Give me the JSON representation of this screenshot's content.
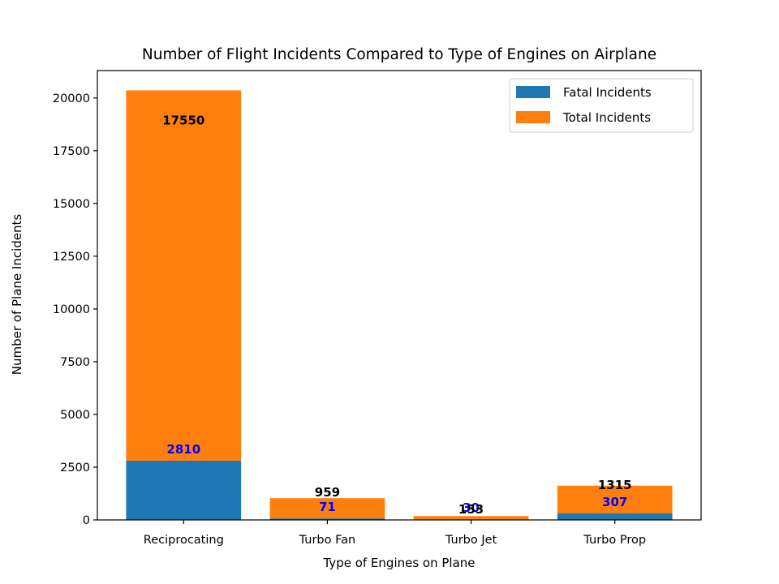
{
  "chart_data": {
    "type": "bar",
    "stacked": true,
    "title": "Number of Flight Incidents Compared to Type of Engines on Airplane",
    "xlabel": "Type of Engines on Plane",
    "ylabel": "Number of Plane Incidents",
    "categories": [
      "Reciprocating",
      "Turbo Fan",
      "Turbo Jet",
      "Turbo Prop"
    ],
    "series": [
      {
        "name": "Fatal Incidents",
        "values": [
          2810,
          71,
          30,
          307
        ],
        "color": "#1f77b4"
      },
      {
        "name": "Total Incidents",
        "values": [
          17550,
          959,
          153,
          1315
        ],
        "color": "#ff7f0e"
      }
    ],
    "data_labels": {
      "fatal": [
        "2810",
        "71",
        "30",
        "307"
      ],
      "total": [
        "17550",
        "959",
        "153",
        "1315"
      ],
      "fatal_color": "#0000ff",
      "total_color": "#000000"
    },
    "ylim": [
      0,
      21300
    ],
    "yticks": [
      0,
      2500,
      5000,
      7500,
      10000,
      12500,
      15000,
      17500,
      20000
    ],
    "ytick_labels": [
      "0",
      "2500",
      "5000",
      "7500",
      "10000",
      "12500",
      "15000",
      "17500",
      "20000"
    ],
    "grid": false,
    "legend_position": "upper right"
  }
}
